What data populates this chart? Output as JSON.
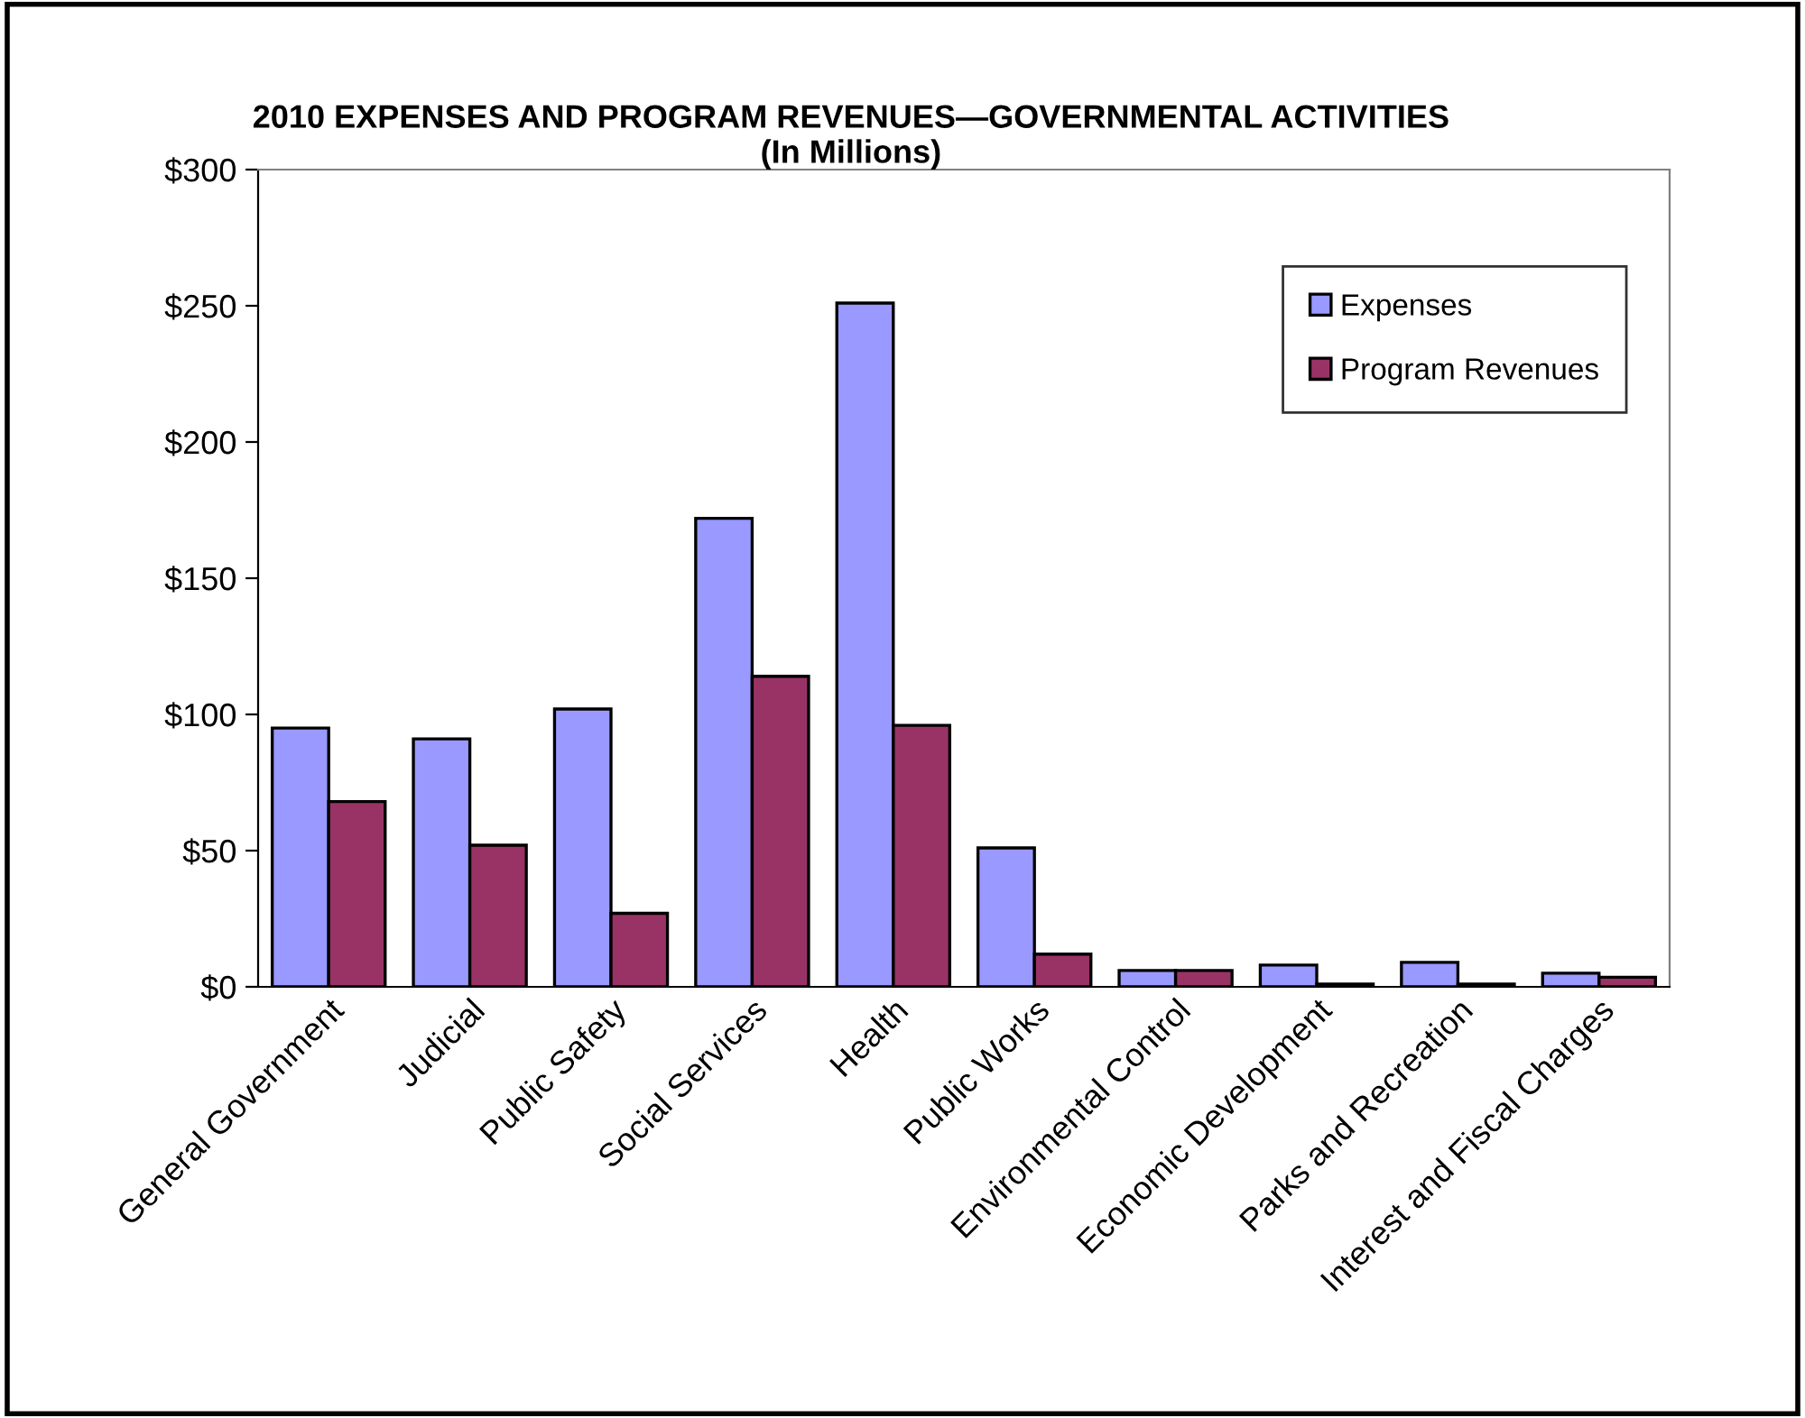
{
  "chart_data": {
    "type": "bar",
    "title": "2010 EXPENSES AND PROGRAM REVENUES—GOVERNMENTAL ACTIVITIES\n(In Millions)",
    "categories": [
      "General Government",
      "Judicial",
      "Public Safety",
      "Social Services",
      "Health",
      "Public Works",
      "Environmental Control",
      "Economic Development",
      "Parks and Recreation",
      "Interest and Fiscal Charges"
    ],
    "series": [
      {
        "name": "Expenses",
        "color": "#9999ff",
        "values": [
          95,
          91,
          102,
          172,
          251,
          51,
          6,
          8,
          9,
          5
        ]
      },
      {
        "name": "Program Revenues",
        "color": "#993366",
        "values": [
          68,
          52,
          27,
          114,
          96,
          12,
          6,
          1,
          1,
          3.5
        ]
      }
    ],
    "ylim": [
      0,
      300
    ],
    "yticks": [
      {
        "value": 0,
        "label": "$0"
      },
      {
        "value": 50,
        "label": "$50"
      },
      {
        "value": 100,
        "label": "$100"
      },
      {
        "value": 150,
        "label": "$150"
      },
      {
        "value": 200,
        "label": "$200"
      },
      {
        "value": 250,
        "label": "$250"
      },
      {
        "value": 300,
        "label": "$300"
      }
    ],
    "grid": false,
    "legend": "top right"
  }
}
